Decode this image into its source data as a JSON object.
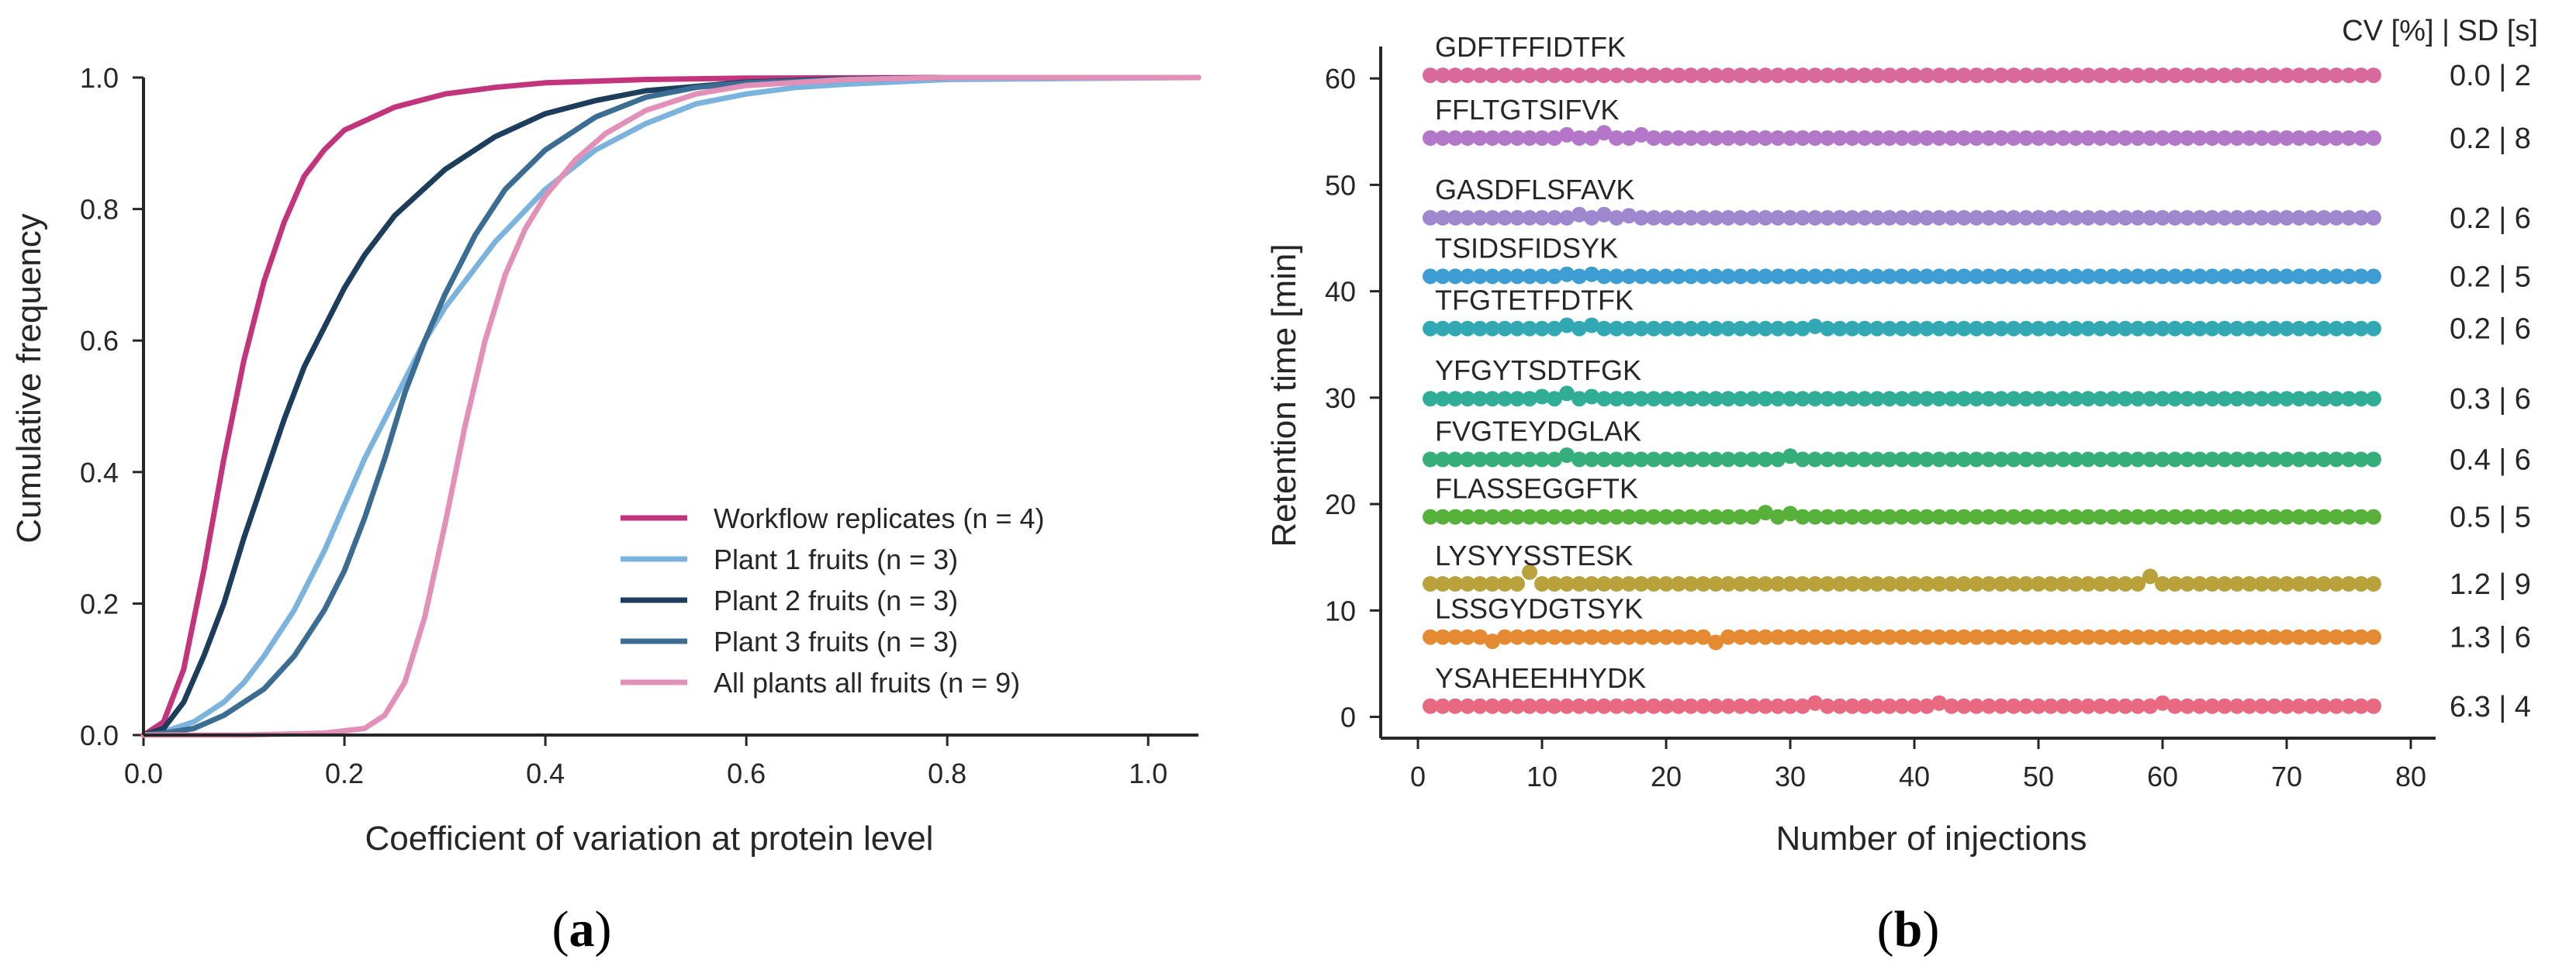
{
  "colors": {
    "workflow": "#c2357c",
    "plant1": "#7bb3dd",
    "plant2": "#1d3d5c",
    "plant3": "#3b6d92",
    "allplants": "#e390b9",
    "axis": "#262626",
    "text": "#262626"
  },
  "panel_a": {
    "label": "a"
  },
  "panel_b": {
    "label": "b"
  },
  "chart_data": [
    {
      "type": "line",
      "panel": "a",
      "title": "",
      "xlabel": "Coefficient of variation at protein level",
      "ylabel": "Cumulative frequency",
      "xlim": [
        0,
        1.05
      ],
      "ylim": [
        0,
        1.0
      ],
      "xticks": [
        0.0,
        0.2,
        0.4,
        0.6,
        0.8,
        1.0
      ],
      "xtick_labels": [
        "0.0",
        "0.2",
        "0.4",
        "0.6",
        "0.8",
        "1.0"
      ],
      "yticks": [
        0.0,
        0.2,
        0.4,
        0.6,
        0.8,
        1.0
      ],
      "ytick_labels": [
        "0.0",
        "0.2",
        "0.4",
        "0.6",
        "0.8",
        "1.0"
      ],
      "legend_position": "lower-right",
      "series": [
        {
          "name": "Workflow replicates (n = 4)",
          "color_key": "workflow",
          "x": [
            0,
            0.02,
            0.04,
            0.06,
            0.08,
            0.1,
            0.12,
            0.14,
            0.16,
            0.18,
            0.2,
            0.25,
            0.3,
            0.35,
            0.4,
            0.5,
            0.6,
            0.8,
            1.05
          ],
          "y": [
            0,
            0.02,
            0.1,
            0.25,
            0.42,
            0.57,
            0.69,
            0.78,
            0.85,
            0.89,
            0.92,
            0.955,
            0.975,
            0.985,
            0.992,
            0.997,
            0.999,
            1.0,
            1.0
          ]
        },
        {
          "name": "Plant 1 fruits (n = 3)",
          "color_key": "plant1",
          "x": [
            0,
            0.02,
            0.05,
            0.08,
            0.1,
            0.12,
            0.15,
            0.18,
            0.2,
            0.22,
            0.25,
            0.28,
            0.3,
            0.35,
            0.4,
            0.45,
            0.5,
            0.55,
            0.6,
            0.65,
            0.7,
            0.8,
            1.05
          ],
          "y": [
            0,
            0.005,
            0.02,
            0.05,
            0.08,
            0.12,
            0.19,
            0.28,
            0.35,
            0.42,
            0.51,
            0.6,
            0.65,
            0.75,
            0.83,
            0.89,
            0.93,
            0.96,
            0.975,
            0.985,
            0.99,
            0.997,
            1.0
          ]
        },
        {
          "name": "Plant 2 fruits (n = 3)",
          "color_key": "plant2",
          "x": [
            0,
            0.02,
            0.04,
            0.06,
            0.08,
            0.1,
            0.12,
            0.14,
            0.16,
            0.18,
            0.2,
            0.22,
            0.25,
            0.3,
            0.35,
            0.4,
            0.45,
            0.5,
            0.6,
            0.7,
            0.8,
            1.05
          ],
          "y": [
            0,
            0.01,
            0.05,
            0.12,
            0.2,
            0.3,
            0.39,
            0.48,
            0.56,
            0.62,
            0.68,
            0.73,
            0.79,
            0.86,
            0.91,
            0.945,
            0.965,
            0.98,
            0.993,
            0.998,
            1.0,
            1.0
          ]
        },
        {
          "name": "Plant 3 fruits (n = 3)",
          "color_key": "plant3",
          "x": [
            0,
            0.02,
            0.05,
            0.08,
            0.1,
            0.12,
            0.15,
            0.18,
            0.2,
            0.22,
            0.24,
            0.26,
            0.28,
            0.3,
            0.33,
            0.36,
            0.4,
            0.45,
            0.5,
            0.55,
            0.6,
            0.7,
            0.8,
            1.05
          ],
          "y": [
            0,
            0.003,
            0.01,
            0.03,
            0.05,
            0.07,
            0.12,
            0.19,
            0.25,
            0.33,
            0.42,
            0.52,
            0.6,
            0.67,
            0.76,
            0.83,
            0.89,
            0.94,
            0.97,
            0.985,
            0.992,
            0.997,
            1.0,
            1.0
          ]
        },
        {
          "name": "All plants all fruits (n = 9)",
          "color_key": "allplants",
          "x": [
            0,
            0.1,
            0.18,
            0.22,
            0.24,
            0.26,
            0.28,
            0.3,
            0.32,
            0.34,
            0.36,
            0.38,
            0.4,
            0.43,
            0.46,
            0.5,
            0.55,
            0.6,
            0.7,
            0.8,
            1.05
          ],
          "y": [
            0,
            0,
            0.003,
            0.01,
            0.03,
            0.08,
            0.18,
            0.32,
            0.47,
            0.6,
            0.7,
            0.77,
            0.82,
            0.875,
            0.915,
            0.95,
            0.975,
            0.988,
            0.997,
            1.0,
            1.0
          ]
        }
      ]
    },
    {
      "type": "scatter",
      "panel": "b",
      "title": "",
      "xlabel": "Number of injections",
      "ylabel": "Retention time [min]",
      "xlim": [
        -3,
        82
      ],
      "ylim": [
        -2,
        63
      ],
      "xticks": [
        0,
        10,
        20,
        30,
        40,
        50,
        60,
        70,
        80
      ],
      "xtick_labels": [
        "0",
        "10",
        "20",
        "30",
        "40",
        "50",
        "60",
        "70",
        "80"
      ],
      "yticks": [
        0,
        10,
        20,
        30,
        40,
        50,
        60
      ],
      "ytick_labels": [
        "0",
        "10",
        "20",
        "30",
        "40",
        "50",
        "60"
      ],
      "header": "CV [%] | SD [s]",
      "injections": {
        "start": 1,
        "end": 77
      },
      "series": [
        {
          "peptide": "GDFTFFIDTFK",
          "rt": 60.3,
          "stats": "0.0 | 2",
          "color": "#d9689b",
          "deviations": {}
        },
        {
          "peptide": "FFLTGTSIFVK",
          "rt": 54.4,
          "stats": "0.2 | 8",
          "color": "#b476c8",
          "deviations": {
            "12": 0.3,
            "15": 0.5,
            "18": 0.3
          }
        },
        {
          "peptide": "GASDFLSFAVK",
          "rt": 46.9,
          "stats": "0.2 | 6",
          "color": "#9f87cf",
          "deviations": {
            "13": 0.3,
            "15": 0.3,
            "17": 0.2
          }
        },
        {
          "peptide": "TSIDSFIDSYK",
          "rt": 41.4,
          "stats": "0.2 | 5",
          "color": "#3e9ed4",
          "deviations": {
            "12": 0.2,
            "14": 0.2
          }
        },
        {
          "peptide": "TFGTETFDTFK",
          "rt": 36.5,
          "stats": "0.2 | 6",
          "color": "#31a8b3",
          "deviations": {
            "12": 0.3,
            "14": 0.3,
            "32": 0.2
          }
        },
        {
          "peptide": "YFGYTSDTFGK",
          "rt": 29.9,
          "stats": "0.3 | 6",
          "color": "#30ad97",
          "deviations": {
            "10": 0.2,
            "12": 0.5,
            "14": 0.2
          }
        },
        {
          "peptide": "FVGTEYDGLAK",
          "rt": 24.2,
          "stats": "0.4 | 6",
          "color": "#36ae7c",
          "deviations": {
            "12": 0.4,
            "30": 0.3
          }
        },
        {
          "peptide": "FLASSEGGFTK",
          "rt": 18.8,
          "stats": "0.5 | 5",
          "color": "#56b03a",
          "deviations": {
            "28": 0.4,
            "30": 0.3
          }
        },
        {
          "peptide": "LYSYYSSTESK",
          "rt": 12.5,
          "stats": "1.2 | 9",
          "color": "#b9a23c",
          "deviations": {
            "9": 1.1,
            "59": 0.7
          }
        },
        {
          "peptide": "LSSGYDGTSYK",
          "rt": 7.5,
          "stats": "1.3 | 6",
          "color": "#e48a32",
          "deviations": {
            "6": -0.4,
            "24": -0.5
          }
        },
        {
          "peptide": "YSAHEEHHYDK",
          "rt": 1.0,
          "stats": "6.3 | 4",
          "color": "#e86a82",
          "deviations": {
            "32": 0.3,
            "42": 0.3,
            "60": 0.3
          }
        }
      ]
    }
  ]
}
